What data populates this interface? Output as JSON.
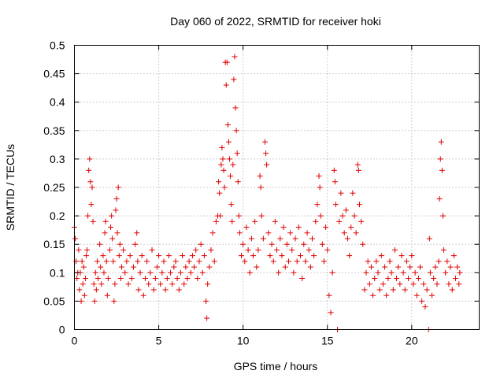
{
  "chart_data": {
    "type": "scatter",
    "title": "Day 060 of 2022, SRMTID for receiver hoki",
    "xlabel": "GPS time / hours",
    "ylabel": "SRMTID / TECUs",
    "xlim": [
      0,
      24
    ],
    "ylim": [
      0,
      0.5
    ],
    "xticks": [
      0,
      5,
      10,
      15,
      20
    ],
    "yticks": [
      0,
      0.05,
      0.1,
      0.15,
      0.2,
      0.25,
      0.3,
      0.35,
      0.4,
      0.45,
      0.5
    ],
    "xtick_labels": [
      "0",
      "5",
      "10",
      "15",
      "20"
    ],
    "ytick_labels": [
      "0",
      "0.05",
      "0.1",
      "0.15",
      "0.2",
      "0.25",
      "0.3",
      "0.35",
      "0.4",
      "0.45",
      "0.5"
    ],
    "grid": true,
    "marker": "+",
    "series": [
      {
        "name": "SRMTID",
        "color": "#e00000",
        "points": [
          [
            0.0,
            0.18
          ],
          [
            0.05,
            0.16
          ],
          [
            0.1,
            0.12
          ],
          [
            0.15,
            0.09
          ],
          [
            0.2,
            0.1
          ],
          [
            0.25,
            0.14
          ],
          [
            0.3,
            0.07
          ],
          [
            0.35,
            0.1
          ],
          [
            0.4,
            0.05
          ],
          [
            0.45,
            0.12
          ],
          [
            0.5,
            0.08
          ],
          [
            0.55,
            0.11
          ],
          [
            0.6,
            0.06
          ],
          [
            0.65,
            0.09
          ],
          [
            0.7,
            0.13
          ],
          [
            0.75,
            0.14
          ],
          [
            0.8,
            0.2
          ],
          [
            0.85,
            0.28
          ],
          [
            0.9,
            0.3
          ],
          [
            0.95,
            0.26
          ],
          [
            1.0,
            0.22
          ],
          [
            1.05,
            0.25
          ],
          [
            1.1,
            0.19
          ],
          [
            1.15,
            0.08
          ],
          [
            1.2,
            0.05
          ],
          [
            1.25,
            0.1
          ],
          [
            1.3,
            0.07
          ],
          [
            1.35,
            0.12
          ],
          [
            1.4,
            0.09
          ],
          [
            1.5,
            0.15
          ],
          [
            1.55,
            0.11
          ],
          [
            1.6,
            0.08
          ],
          [
            1.7,
            0.13
          ],
          [
            1.75,
            0.1
          ],
          [
            1.8,
            0.17
          ],
          [
            1.85,
            0.19
          ],
          [
            1.9,
            0.12
          ],
          [
            1.95,
            0.06
          ],
          [
            2.0,
            0.09
          ],
          [
            2.1,
            0.14
          ],
          [
            2.15,
            0.18
          ],
          [
            2.2,
            0.2
          ],
          [
            2.25,
            0.16
          ],
          [
            2.3,
            0.12
          ],
          [
            2.35,
            0.05
          ],
          [
            2.4,
            0.08
          ],
          [
            2.45,
            0.21
          ],
          [
            2.5,
            0.23
          ],
          [
            2.55,
            0.17
          ],
          [
            2.6,
            0.25
          ],
          [
            2.65,
            0.13
          ],
          [
            2.7,
            0.15
          ],
          [
            2.75,
            0.09
          ],
          [
            2.8,
            0.11
          ],
          [
            2.9,
            0.14
          ],
          [
            3.0,
            0.1
          ],
          [
            3.1,
            0.12
          ],
          [
            3.2,
            0.08
          ],
          [
            3.3,
            0.13
          ],
          [
            3.4,
            0.09
          ],
          [
            3.5,
            0.11
          ],
          [
            3.6,
            0.15
          ],
          [
            3.7,
            0.17
          ],
          [
            3.75,
            0.12
          ],
          [
            3.8,
            0.07
          ],
          [
            3.9,
            0.1
          ],
          [
            4.0,
            0.13
          ],
          [
            4.1,
            0.06
          ],
          [
            4.2,
            0.09
          ],
          [
            4.3,
            0.12
          ],
          [
            4.4,
            0.08
          ],
          [
            4.5,
            0.1
          ],
          [
            4.6,
            0.14
          ],
          [
            4.7,
            0.07
          ],
          [
            4.8,
            0.09
          ],
          [
            4.9,
            0.11
          ],
          [
            5.0,
            0.13
          ],
          [
            5.1,
            0.08
          ],
          [
            5.2,
            0.1
          ],
          [
            5.3,
            0.12
          ],
          [
            5.4,
            0.07
          ],
          [
            5.5,
            0.09
          ],
          [
            5.6,
            0.13
          ],
          [
            5.7,
            0.1
          ],
          [
            5.8,
            0.08
          ],
          [
            5.9,
            0.11
          ],
          [
            6.0,
            0.12
          ],
          [
            6.1,
            0.09
          ],
          [
            6.2,
            0.07
          ],
          [
            6.3,
            0.1
          ],
          [
            6.4,
            0.13
          ],
          [
            6.5,
            0.08
          ],
          [
            6.6,
            0.11
          ],
          [
            6.7,
            0.09
          ],
          [
            6.8,
            0.12
          ],
          [
            6.9,
            0.1
          ],
          [
            7.0,
            0.13
          ],
          [
            7.1,
            0.11
          ],
          [
            7.2,
            0.14
          ],
          [
            7.3,
            0.09
          ],
          [
            7.4,
            0.12
          ],
          [
            7.5,
            0.15
          ],
          [
            7.6,
            0.1
          ],
          [
            7.7,
            0.13
          ],
          [
            7.8,
            0.05
          ],
          [
            7.85,
            0.02
          ],
          [
            7.9,
            0.08
          ],
          [
            8.0,
            0.11
          ],
          [
            8.1,
            0.14
          ],
          [
            8.2,
            0.17
          ],
          [
            8.3,
            0.12
          ],
          [
            8.4,
            0.19
          ],
          [
            8.5,
            0.2
          ],
          [
            8.55,
            0.26
          ],
          [
            8.6,
            0.24
          ],
          [
            8.65,
            0.2
          ],
          [
            8.7,
            0.29
          ],
          [
            8.75,
            0.32
          ],
          [
            8.8,
            0.3
          ],
          [
            8.85,
            0.28
          ],
          [
            8.9,
            0.25
          ],
          [
            8.95,
            0.47
          ],
          [
            9.0,
            0.43
          ],
          [
            9.05,
            0.47
          ],
          [
            9.1,
            0.36
          ],
          [
            9.15,
            0.33
          ],
          [
            9.2,
            0.3
          ],
          [
            9.25,
            0.27
          ],
          [
            9.3,
            0.22
          ],
          [
            9.35,
            0.19
          ],
          [
            9.4,
            0.29
          ],
          [
            9.45,
            0.44
          ],
          [
            9.5,
            0.48
          ],
          [
            9.55,
            0.39
          ],
          [
            9.6,
            0.35
          ],
          [
            9.65,
            0.31
          ],
          [
            9.7,
            0.26
          ],
          [
            9.75,
            0.2
          ],
          [
            9.8,
            0.17
          ],
          [
            9.9,
            0.13
          ],
          [
            10.0,
            0.15
          ],
          [
            10.1,
            0.12
          ],
          [
            10.2,
            0.18
          ],
          [
            10.3,
            0.14
          ],
          [
            10.4,
            0.1
          ],
          [
            10.5,
            0.16
          ],
          [
            10.6,
            0.13
          ],
          [
            10.7,
            0.19
          ],
          [
            10.8,
            0.11
          ],
          [
            10.9,
            0.14
          ],
          [
            11.0,
            0.27
          ],
          [
            11.05,
            0.25
          ],
          [
            11.1,
            0.2
          ],
          [
            11.2,
            0.16
          ],
          [
            11.3,
            0.33
          ],
          [
            11.35,
            0.31
          ],
          [
            11.4,
            0.29
          ],
          [
            11.5,
            0.17
          ],
          [
            11.6,
            0.13
          ],
          [
            11.7,
            0.15
          ],
          [
            11.8,
            0.12
          ],
          [
            11.9,
            0.19
          ],
          [
            12.0,
            0.14
          ],
          [
            12.1,
            0.1
          ],
          [
            12.2,
            0.16
          ],
          [
            12.3,
            0.13
          ],
          [
            12.4,
            0.18
          ],
          [
            12.5,
            0.11
          ],
          [
            12.6,
            0.15
          ],
          [
            12.7,
            0.12
          ],
          [
            12.8,
            0.17
          ],
          [
            12.9,
            0.14
          ],
          [
            13.0,
            0.1
          ],
          [
            13.1,
            0.16
          ],
          [
            13.2,
            0.12
          ],
          [
            13.3,
            0.18
          ],
          [
            13.4,
            0.13
          ],
          [
            13.5,
            0.09
          ],
          [
            13.6,
            0.15
          ],
          [
            13.7,
            0.12
          ],
          [
            13.8,
            0.17
          ],
          [
            13.9,
            0.14
          ],
          [
            14.0,
            0.11
          ],
          [
            14.1,
            0.16
          ],
          [
            14.2,
            0.13
          ],
          [
            14.3,
            0.19
          ],
          [
            14.4,
            0.22
          ],
          [
            14.5,
            0.27
          ],
          [
            14.55,
            0.25
          ],
          [
            14.6,
            0.2
          ],
          [
            14.7,
            0.15
          ],
          [
            14.8,
            0.12
          ],
          [
            14.9,
            0.18
          ],
          [
            15.0,
            0.14
          ],
          [
            15.1,
            0.06
          ],
          [
            15.2,
            0.03
          ],
          [
            15.3,
            0.1
          ],
          [
            15.4,
            0.28
          ],
          [
            15.45,
            0.26
          ],
          [
            15.5,
            0.22
          ],
          [
            15.6,
            0.0
          ],
          [
            15.7,
            0.19
          ],
          [
            15.8,
            0.24
          ],
          [
            15.9,
            0.2
          ],
          [
            16.0,
            0.17
          ],
          [
            16.1,
            0.21
          ],
          [
            16.2,
            0.16
          ],
          [
            16.3,
            0.13
          ],
          [
            16.4,
            0.18
          ],
          [
            16.5,
            0.24
          ],
          [
            16.6,
            0.2
          ],
          [
            16.7,
            0.17
          ],
          [
            16.8,
            0.29
          ],
          [
            16.85,
            0.28
          ],
          [
            16.9,
            0.22
          ],
          [
            17.0,
            0.19
          ],
          [
            17.1,
            0.15
          ],
          [
            17.2,
            0.07
          ],
          [
            17.3,
            0.1
          ],
          [
            17.4,
            0.12
          ],
          [
            17.5,
            0.08
          ],
          [
            17.6,
            0.11
          ],
          [
            17.7,
            0.06
          ],
          [
            17.8,
            0.09
          ],
          [
            17.9,
            0.12
          ],
          [
            18.0,
            0.1
          ],
          [
            18.1,
            0.07
          ],
          [
            18.2,
            0.13
          ],
          [
            18.3,
            0.08
          ],
          [
            18.4,
            0.11
          ],
          [
            18.5,
            0.06
          ],
          [
            18.6,
            0.09
          ],
          [
            18.7,
            0.12
          ],
          [
            18.8,
            0.1
          ],
          [
            18.9,
            0.07
          ],
          [
            19.0,
            0.14
          ],
          [
            19.1,
            0.09
          ],
          [
            19.2,
            0.11
          ],
          [
            19.3,
            0.08
          ],
          [
            19.4,
            0.13
          ],
          [
            19.5,
            0.1
          ],
          [
            19.6,
            0.07
          ],
          [
            19.7,
            0.12
          ],
          [
            19.8,
            0.09
          ],
          [
            19.9,
            0.11
          ],
          [
            20.0,
            0.13
          ],
          [
            20.1,
            0.08
          ],
          [
            20.2,
            0.1
          ],
          [
            20.3,
            0.06
          ],
          [
            20.4,
            0.09
          ],
          [
            20.5,
            0.11
          ],
          [
            20.6,
            0.05
          ],
          [
            20.7,
            0.08
          ],
          [
            20.8,
            0.04
          ],
          [
            20.9,
            0.07
          ],
          [
            21.0,
            0.0
          ],
          [
            21.05,
            0.16
          ],
          [
            21.1,
            0.1
          ],
          [
            21.2,
            0.06
          ],
          [
            21.3,
            0.09
          ],
          [
            21.4,
            0.11
          ],
          [
            21.5,
            0.08
          ],
          [
            21.6,
            0.12
          ],
          [
            21.65,
            0.23
          ],
          [
            21.7,
            0.3
          ],
          [
            21.75,
            0.33
          ],
          [
            21.8,
            0.28
          ],
          [
            21.85,
            0.2
          ],
          [
            21.9,
            0.14
          ],
          [
            22.0,
            0.1
          ],
          [
            22.1,
            0.12
          ],
          [
            22.2,
            0.08
          ],
          [
            22.3,
            0.11
          ],
          [
            22.4,
            0.07
          ],
          [
            22.5,
            0.13
          ],
          [
            22.6,
            0.09
          ],
          [
            22.7,
            0.11
          ],
          [
            22.8,
            0.08
          ],
          [
            22.85,
            0.1
          ]
        ]
      }
    ]
  }
}
